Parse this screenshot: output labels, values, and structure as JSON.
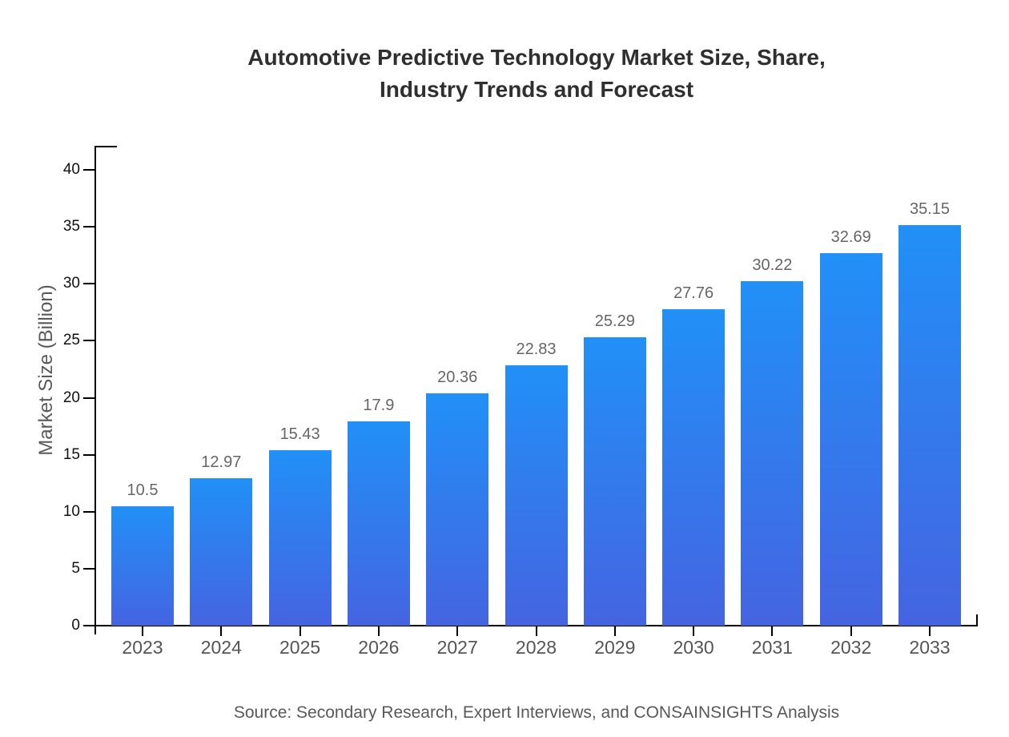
{
  "page": {
    "title_line1": "Automotive Predictive Technology Market Size, Share,",
    "title_line2": "Industry Trends and Forecast"
  },
  "chart_data": {
    "type": "bar",
    "title": "Automotive Predictive Technology Market Size, Share, Industry Trends and Forecast",
    "categories": [
      "2023",
      "2024",
      "2025",
      "2026",
      "2027",
      "2028",
      "2029",
      "2030",
      "2031",
      "2032",
      "2033"
    ],
    "values": [
      10.5,
      12.97,
      15.43,
      17.9,
      20.36,
      22.83,
      25.29,
      27.76,
      30.22,
      32.69,
      35.15
    ],
    "value_labels": [
      "10.5",
      "12.97",
      "15.43",
      "17.9",
      "20.36",
      "22.83",
      "25.29",
      "27.76",
      "30.22",
      "32.69",
      "35.15"
    ],
    "xlabel": "",
    "ylabel": "Market Size (Billion)",
    "ylim": [
      0,
      40
    ],
    "yticks": [
      0,
      5,
      10,
      15,
      20,
      25,
      30,
      35,
      40
    ],
    "grid": false,
    "legend_position": "none",
    "source": "Source: Secondary Research, Expert Interviews, and CONSAINSIGHTS Analysis",
    "colors": {
      "bar_gradient_top": "#2190F7",
      "bar_gradient_bottom": "#4564E2",
      "axis": "#000000",
      "title_text": "#2F2F2F",
      "ytick_text": "#111111",
      "category_text": "#555555",
      "value_label_text": "#666666",
      "muted_text": "#595959"
    }
  }
}
